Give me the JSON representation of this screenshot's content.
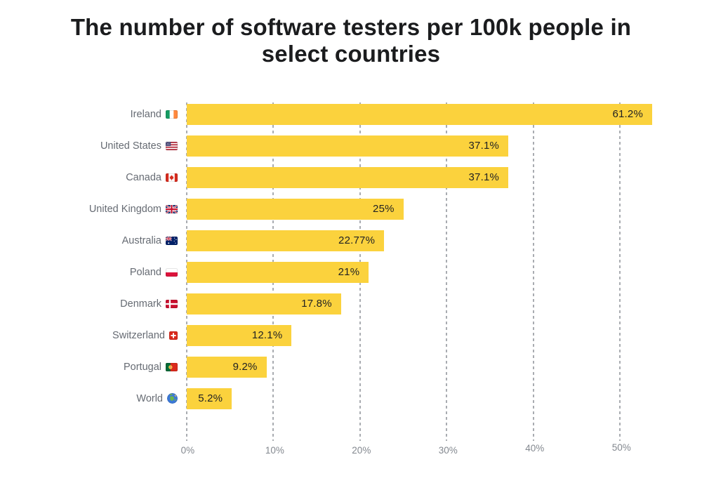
{
  "title": {
    "lines": [
      "The number of software testers per 100k people in",
      "select countries"
    ],
    "full": "The number of software testers per 100k people in select countries"
  },
  "chart_data": {
    "type": "bar",
    "orientation": "horizontal",
    "unit": "%",
    "title": "The number of software testers per 100k people in select countries",
    "categories": [
      "Ireland",
      "United States",
      "Canada",
      "United Kingdom",
      "Australia",
      "Poland",
      "Denmark",
      "Switzerland",
      "Portugal",
      "World"
    ],
    "values": [
      61.2,
      37.1,
      37.1,
      25,
      22.77,
      21,
      17.8,
      12.1,
      9.2,
      5.2
    ],
    "rows": [
      {
        "label": "Ireland",
        "flag": "ireland",
        "value": 61.2,
        "value_label": "61.2%"
      },
      {
        "label": "United States",
        "flag": "united-states",
        "value": 37.1,
        "value_label": "37.1%"
      },
      {
        "label": "Canada",
        "flag": "canada",
        "value": 37.1,
        "value_label": "37.1%"
      },
      {
        "label": "United Kingdom",
        "flag": "united-kingdom",
        "value": 25,
        "value_label": "25%"
      },
      {
        "label": "Australia",
        "flag": "australia",
        "value": 22.77,
        "value_label": "22.77%"
      },
      {
        "label": "Poland",
        "flag": "poland",
        "value": 21,
        "value_label": "21%"
      },
      {
        "label": "Denmark",
        "flag": "denmark",
        "value": 17.8,
        "value_label": "17.8%"
      },
      {
        "label": "Switzerland",
        "flag": "switzerland",
        "value": 12.1,
        "value_label": "12.1%"
      },
      {
        "label": "Portugal",
        "flag": "portugal",
        "value": 9.2,
        "value_label": "9.2%"
      },
      {
        "label": "World",
        "flag": "world",
        "value": 5.2,
        "value_label": "5.2%"
      }
    ],
    "x_axis": {
      "ticks": [
        {
          "value": 0,
          "label": "0%"
        },
        {
          "value": 10,
          "label": "10%"
        },
        {
          "value": 20,
          "label": "20%"
        },
        {
          "value": 30,
          "label": "30%"
        },
        {
          "value": 40,
          "label": "40%"
        },
        {
          "value": 50,
          "label": "50%"
        }
      ],
      "plot_max": 53.7,
      "gridlines": "dashed-vertical"
    },
    "legend": null,
    "notes": "Ireland's bar is clipped at the right edge of the plot area",
    "colors": {
      "bar": "#FBD23D",
      "value_text": "#1F2023",
      "label_text": "#666B73",
      "tick_text": "#83888F",
      "gridline": "#A9ACB1",
      "title_text": "#1B1C1E",
      "background": "#FFFFFF"
    }
  }
}
